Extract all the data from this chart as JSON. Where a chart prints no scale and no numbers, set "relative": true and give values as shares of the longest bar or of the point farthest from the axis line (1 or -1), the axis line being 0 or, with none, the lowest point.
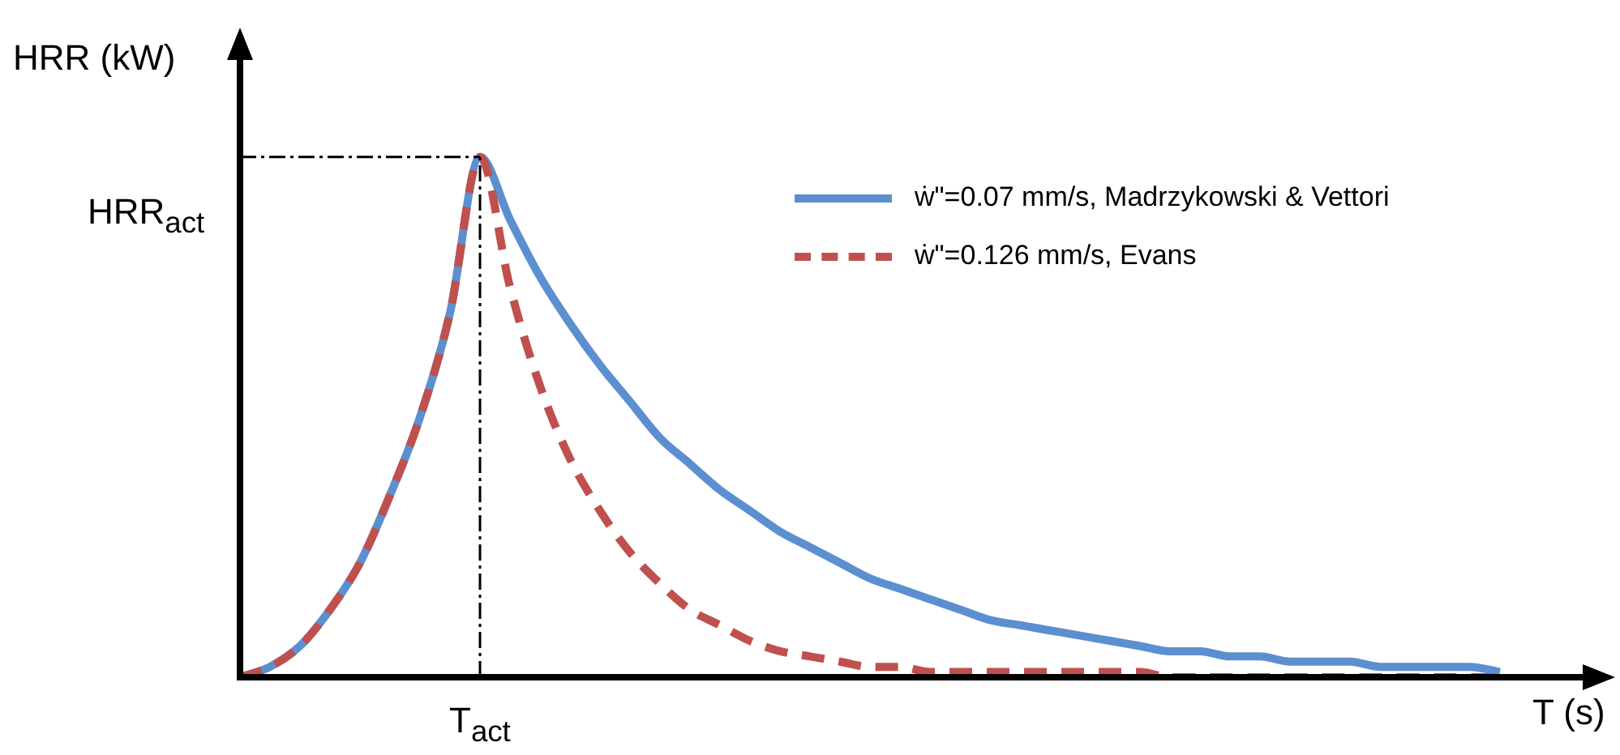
{
  "chart_data": {
    "type": "line",
    "relative": true,
    "xlabel": "T (s)",
    "ylabel": "HRR (kW)",
    "categories": [
      null,
      null,
      null,
      null,
      null,
      null,
      null,
      null,
      null,
      null,
      null,
      null,
      null,
      null,
      null,
      null,
      null,
      null,
      null,
      null,
      null,
      null,
      null,
      null,
      null,
      null,
      null,
      null,
      null,
      null,
      null,
      null,
      null,
      null,
      null,
      null,
      null,
      null,
      null,
      null,
      null,
      null,
      null
    ],
    "series": [
      {
        "name": "ẇ\"=0.07 mm/s, Madrzykowski & Vettori",
        "color": "#5b8fd0",
        "line_style": "solid",
        "values": [
          0,
          0.02,
          0.06,
          0.13,
          0.22,
          0.35,
          0.5,
          0.7,
          1,
          0.88,
          0.77,
          0.68,
          0.6,
          0.53,
          0.46,
          0.41,
          0.36,
          0.32,
          0.28,
          0.25,
          0.22,
          0.19,
          0.17,
          0.15,
          0.13,
          0.11,
          0.1,
          0.09,
          0.08,
          0.07,
          0.06,
          0.05,
          0.05,
          0.04,
          0.04,
          0.03,
          0.03,
          0.03,
          0.02,
          0.02,
          0.02,
          0.02,
          0.01
        ]
      },
      {
        "name": "ẇ\"=0.126 mm/s, Evans",
        "color": "#c0504d",
        "line_style": "dashed",
        "values": [
          0,
          0.02,
          0.06,
          0.13,
          0.22,
          0.35,
          0.5,
          0.7,
          1,
          0.75,
          0.56,
          0.42,
          0.32,
          0.24,
          0.18,
          0.13,
          0.1,
          0.07,
          0.05,
          0.04,
          0.03,
          0.02,
          0.02,
          0.01,
          0.01,
          0.01,
          0.01,
          0.01,
          0.01,
          0.01,
          0.01,
          0,
          0,
          0,
          0,
          0,
          0,
          0,
          0,
          0,
          0,
          0,
          0
        ]
      }
    ],
    "ref_lines": [
      {
        "axis": "y",
        "value": 1,
        "label": "HRR$_{act}$",
        "line_style": "dashed",
        "color": "#000000"
      },
      {
        "axis": "x",
        "value": "T$_{act}$",
        "line_style": "dashed",
        "color": "#000000"
      }
    ],
    "legend": "top right",
    "marker": "none"
  }
}
